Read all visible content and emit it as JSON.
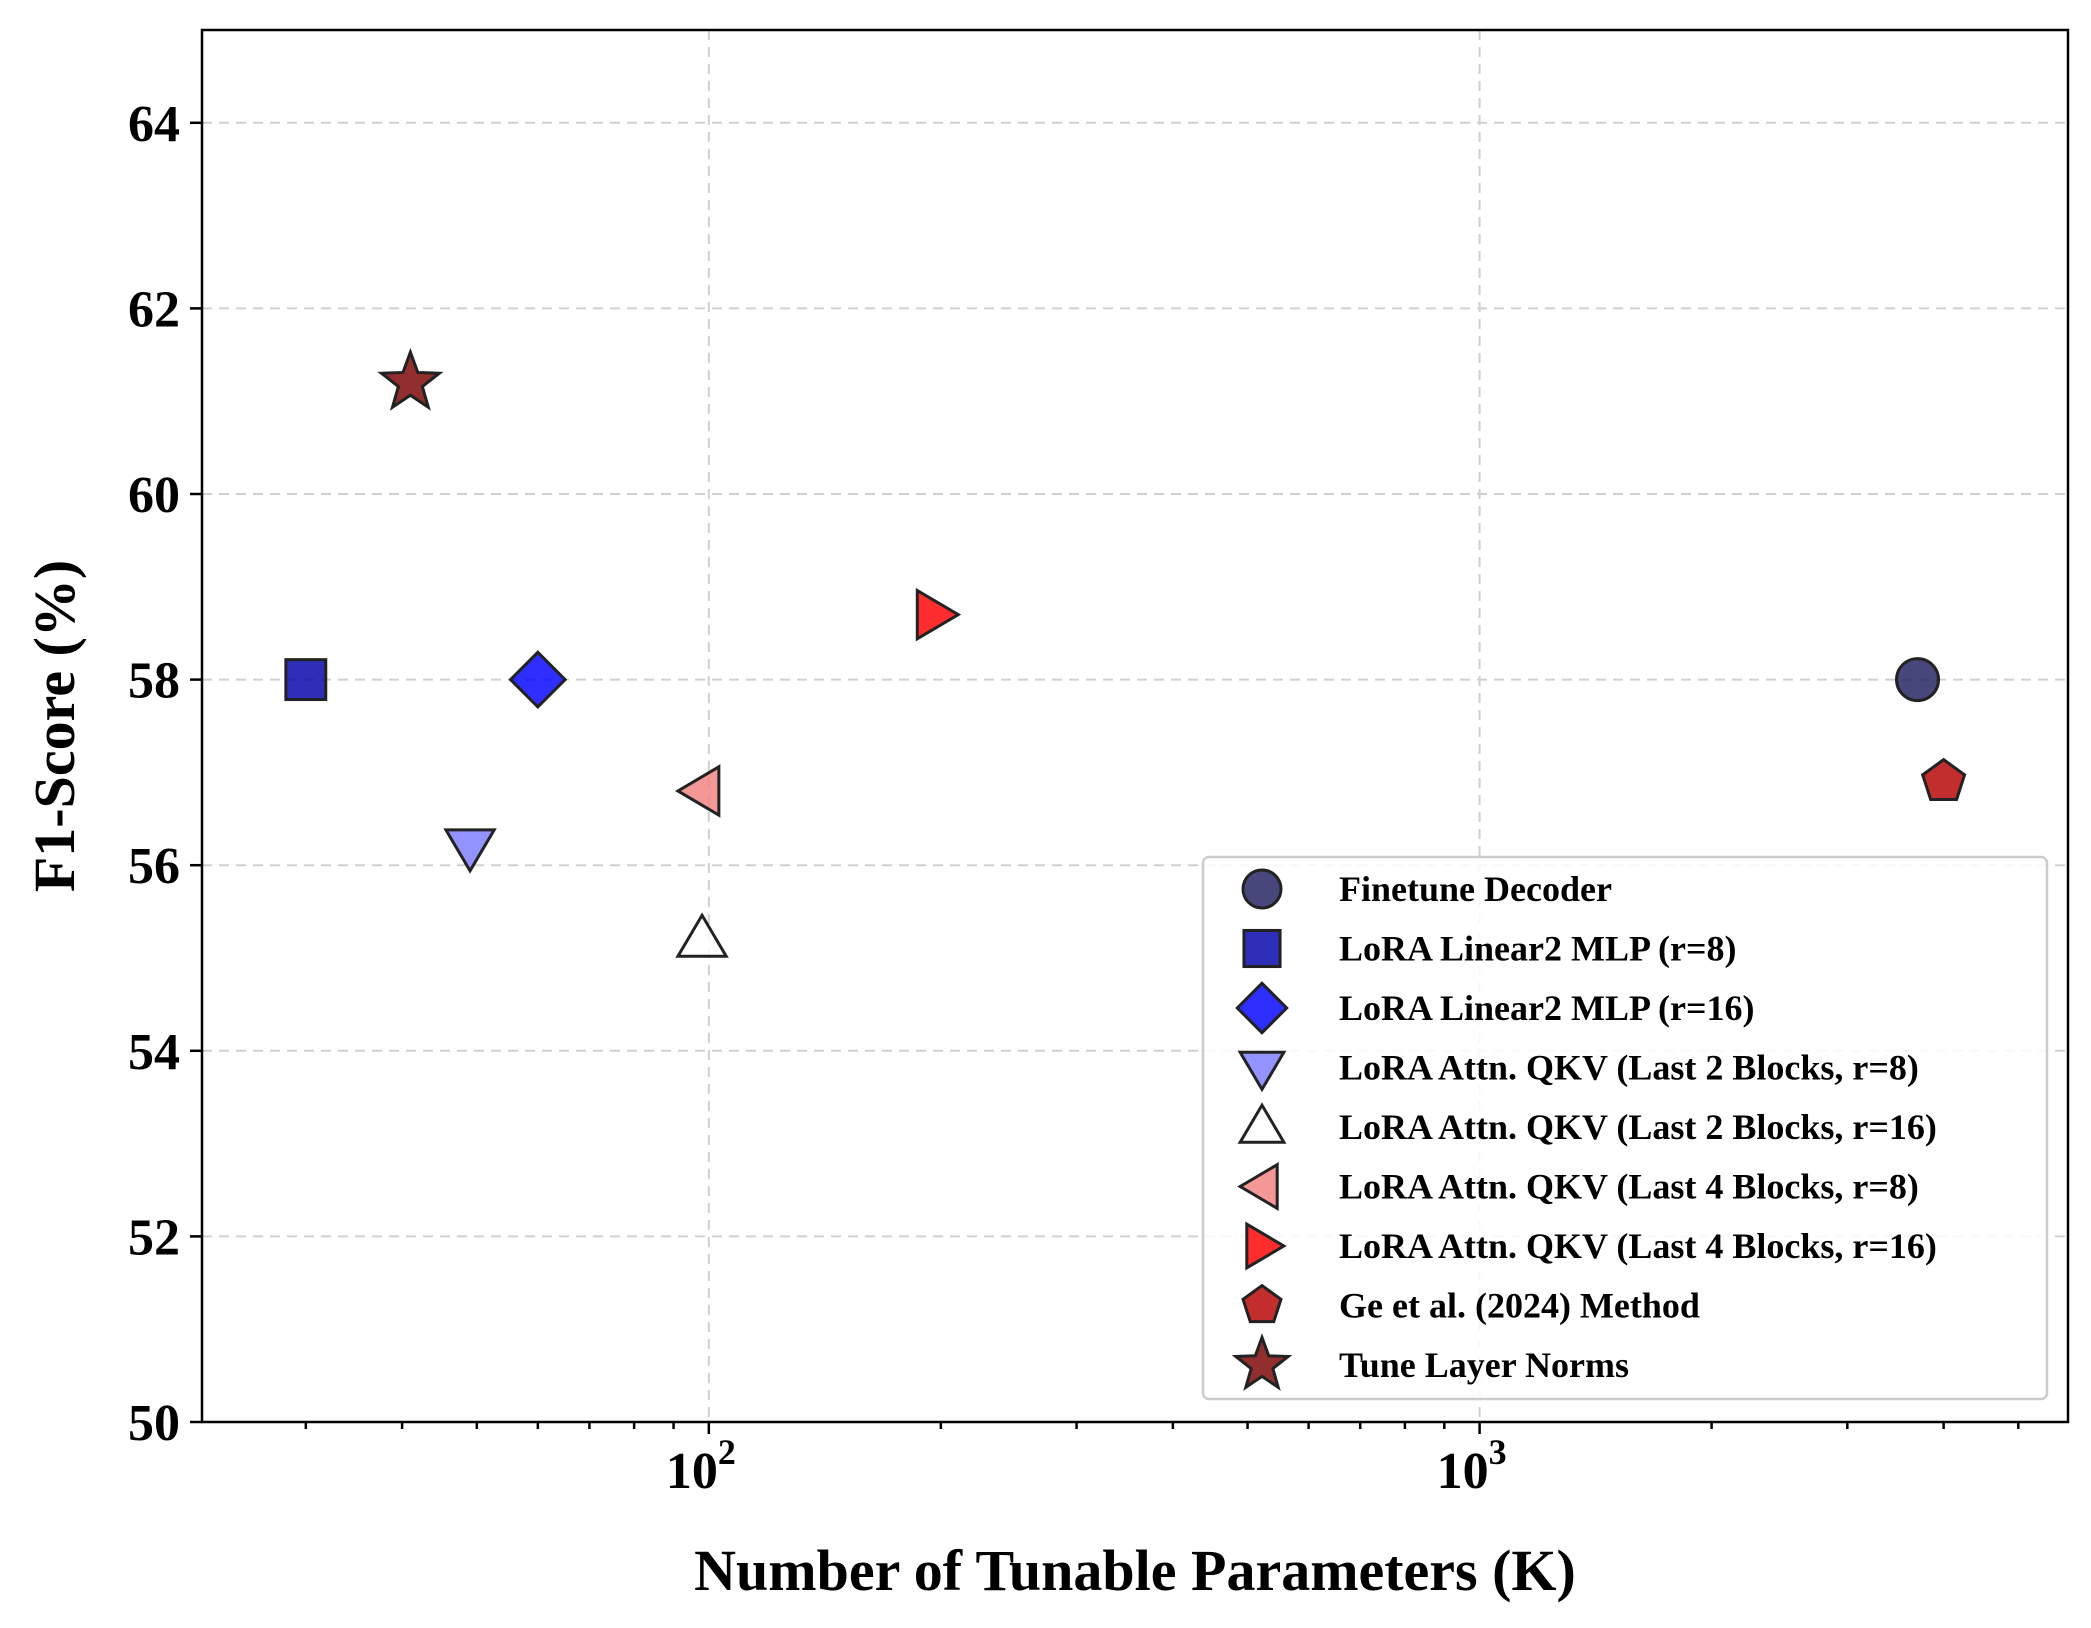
{
  "chart_data": {
    "type": "scatter",
    "xscale": "log",
    "xlabel": "Number of Tunable Parameters (K)",
    "ylabel": "F1-Score (%)",
    "xlim": [
      22,
      5800
    ],
    "ylim": [
      50,
      65
    ],
    "yticks": [
      50,
      52,
      54,
      56,
      58,
      60,
      62,
      64
    ],
    "xticks": [
      {
        "value": 100,
        "base": "10",
        "exp": "2"
      },
      {
        "value": 1000,
        "base": "10",
        "exp": "3"
      }
    ],
    "grid": true,
    "legend_position": "lower-right",
    "series": [
      {
        "name": "Finetune Decoder",
        "marker": "circle",
        "color": "#1f1f5f",
        "x": 3700,
        "y": 58.0
      },
      {
        "name": "LoRA Linear2 MLP (r=8)",
        "marker": "square",
        "color": "#0000aa",
        "x": 30,
        "y": 58.0
      },
      {
        "name": "LoRA Linear2 MLP (r=16)",
        "marker": "diamond",
        "color": "#0000ff",
        "x": 60,
        "y": 58.0
      },
      {
        "name": "LoRA Attn. QKV (Last 2 Blocks, r=8)",
        "marker": "triangle-down",
        "color": "#7b7bff",
        "x": 49,
        "y": 56.2
      },
      {
        "name": "LoRA Attn. QKV (Last 2 Blocks, r=16)",
        "marker": "triangle-up",
        "color": "#ffffff",
        "x": 98,
        "y": 55.2
      },
      {
        "name": "LoRA Attn. QKV (Last 4 Blocks, r=8)",
        "marker": "triangle-left",
        "color": "#f08080",
        "x": 98,
        "y": 56.8
      },
      {
        "name": "LoRA Attn. QKV (Last 4 Blocks, r=16)",
        "marker": "triangle-right",
        "color": "#ff0000",
        "x": 196,
        "y": 58.7
      },
      {
        "name": "Ge et al. (2024) Method",
        "marker": "pentagon",
        "color": "#b50000",
        "x": 4000,
        "y": 56.9
      },
      {
        "name": "Tune Layer Norms",
        "marker": "star",
        "color": "#7a0000",
        "x": 41,
        "y": 61.2
      }
    ]
  }
}
